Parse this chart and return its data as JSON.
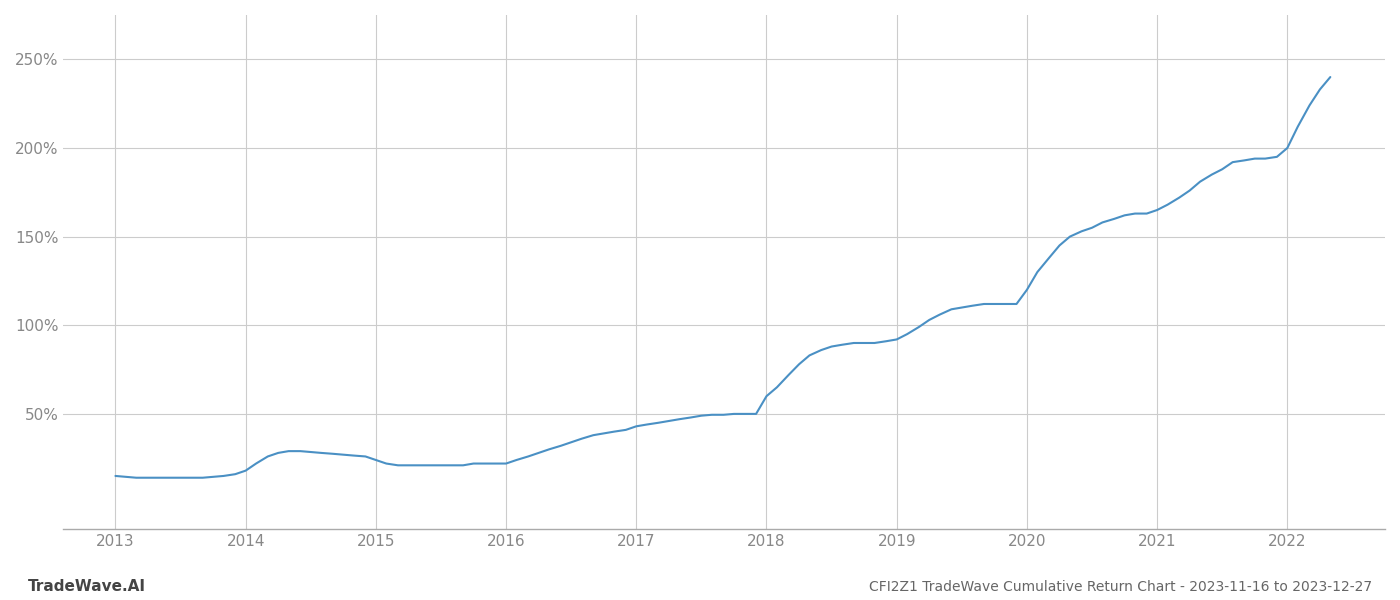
{
  "title": "CFI2Z1 TradeWave Cumulative Return Chart - 2023-11-16 to 2023-12-27",
  "watermark": "TradeWave.AI",
  "line_color": "#4a90c4",
  "background_color": "#ffffff",
  "grid_color": "#cccccc",
  "x_years": [
    2013,
    2014,
    2015,
    2016,
    2017,
    2018,
    2019,
    2020,
    2021,
    2022
  ],
  "y_ticks": [
    50,
    100,
    150,
    200,
    250
  ],
  "ylim": [
    -15,
    275
  ],
  "xlim": [
    2012.6,
    2022.75
  ],
  "data_x": [
    2013.0,
    2013.08,
    2013.16,
    2013.25,
    2013.33,
    2013.42,
    2013.5,
    2013.58,
    2013.67,
    2013.75,
    2013.83,
    2013.92,
    2014.0,
    2014.08,
    2014.17,
    2014.25,
    2014.33,
    2014.42,
    2014.5,
    2014.58,
    2014.67,
    2014.75,
    2014.83,
    2014.92,
    2015.0,
    2015.08,
    2015.17,
    2015.25,
    2015.33,
    2015.42,
    2015.5,
    2015.58,
    2015.67,
    2015.75,
    2015.83,
    2015.92,
    2016.0,
    2016.08,
    2016.17,
    2016.25,
    2016.33,
    2016.42,
    2016.5,
    2016.58,
    2016.67,
    2016.75,
    2016.83,
    2016.92,
    2017.0,
    2017.08,
    2017.17,
    2017.25,
    2017.33,
    2017.42,
    2017.5,
    2017.58,
    2017.67,
    2017.75,
    2017.83,
    2017.92,
    2018.0,
    2018.08,
    2018.17,
    2018.25,
    2018.33,
    2018.42,
    2018.5,
    2018.58,
    2018.67,
    2018.75,
    2018.83,
    2018.92,
    2019.0,
    2019.08,
    2019.17,
    2019.25,
    2019.33,
    2019.42,
    2019.5,
    2019.58,
    2019.67,
    2019.75,
    2019.83,
    2019.92,
    2020.0,
    2020.08,
    2020.17,
    2020.25,
    2020.33,
    2020.42,
    2020.5,
    2020.58,
    2020.67,
    2020.75,
    2020.83,
    2020.92,
    2021.0,
    2021.08,
    2021.17,
    2021.25,
    2021.33,
    2021.42,
    2021.5,
    2021.58,
    2021.67,
    2021.75,
    2021.83,
    2021.92,
    2022.0,
    2022.08,
    2022.17,
    2022.25,
    2022.33
  ],
  "data_y": [
    15,
    14.5,
    14,
    14,
    14,
    14,
    14,
    14,
    14,
    14.5,
    15,
    16,
    18,
    22,
    26,
    28,
    29,
    29,
    28.5,
    28,
    27.5,
    27,
    26.5,
    26,
    24,
    22,
    21,
    21,
    21,
    21,
    21,
    21,
    21,
    22,
    22,
    22,
    22,
    24,
    26,
    28,
    30,
    32,
    34,
    36,
    38,
    39,
    40,
    41,
    43,
    44,
    45,
    46,
    47,
    48,
    49,
    49.5,
    49.5,
    50,
    50,
    50,
    60,
    65,
    72,
    78,
    83,
    86,
    88,
    89,
    90,
    90,
    90,
    91,
    92,
    95,
    99,
    103,
    106,
    109,
    110,
    111,
    112,
    112,
    112,
    112,
    120,
    130,
    138,
    145,
    150,
    153,
    155,
    158,
    160,
    162,
    163,
    163,
    165,
    168,
    172,
    176,
    181,
    185,
    188,
    192,
    193,
    194,
    194,
    195,
    200,
    212,
    224,
    233,
    240
  ]
}
